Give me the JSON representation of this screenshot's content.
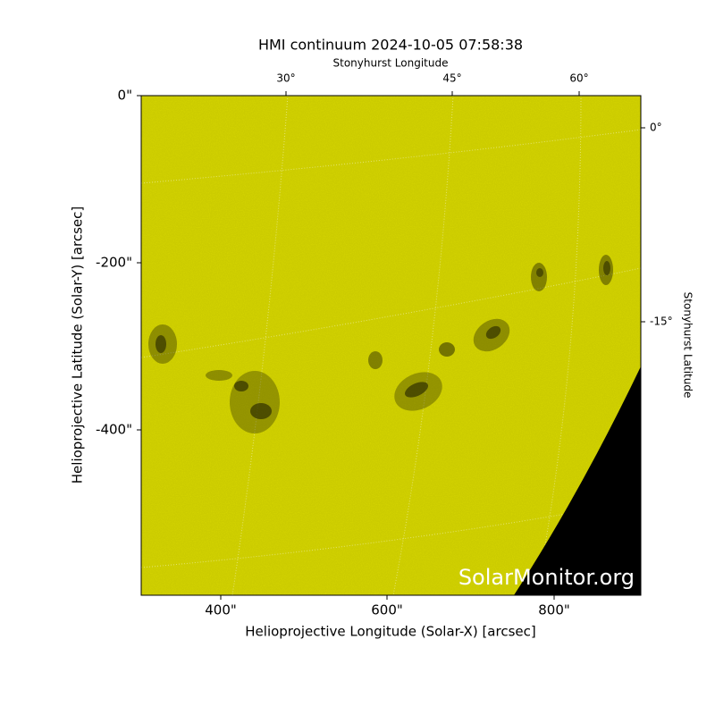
{
  "title": "HMI continuum 2024-10-05 07:58:38",
  "x_axis": {
    "label": "Helioprojective Longitude (Solar-X) [arcsec]",
    "ticks": [
      "400\"",
      "600\"",
      "800\""
    ]
  },
  "y_axis": {
    "label": "Helioprojective Latitude (Solar-Y) [arcsec]",
    "ticks": [
      "0\"",
      "-200\"",
      "-400\""
    ]
  },
  "top_axis": {
    "label": "Stonyhurst Longitude",
    "ticks": [
      "30°",
      "45°",
      "60°"
    ]
  },
  "right_axis": {
    "label": "Stonyhurst Latitude",
    "ticks": [
      "0°",
      "-15°"
    ]
  },
  "watermark": "SolarMonitor.org"
}
